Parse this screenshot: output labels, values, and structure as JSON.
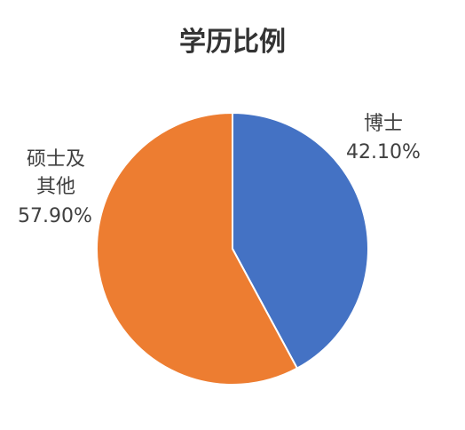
{
  "chart_data": {
    "type": "pie",
    "title": "学历比例",
    "categories": [
      "博士",
      "硕士及其他"
    ],
    "values": [
      42.1,
      57.9
    ],
    "value_labels": [
      "42.10%",
      "57.90%"
    ],
    "colors": [
      "#4472c4",
      "#ed7d31"
    ]
  }
}
